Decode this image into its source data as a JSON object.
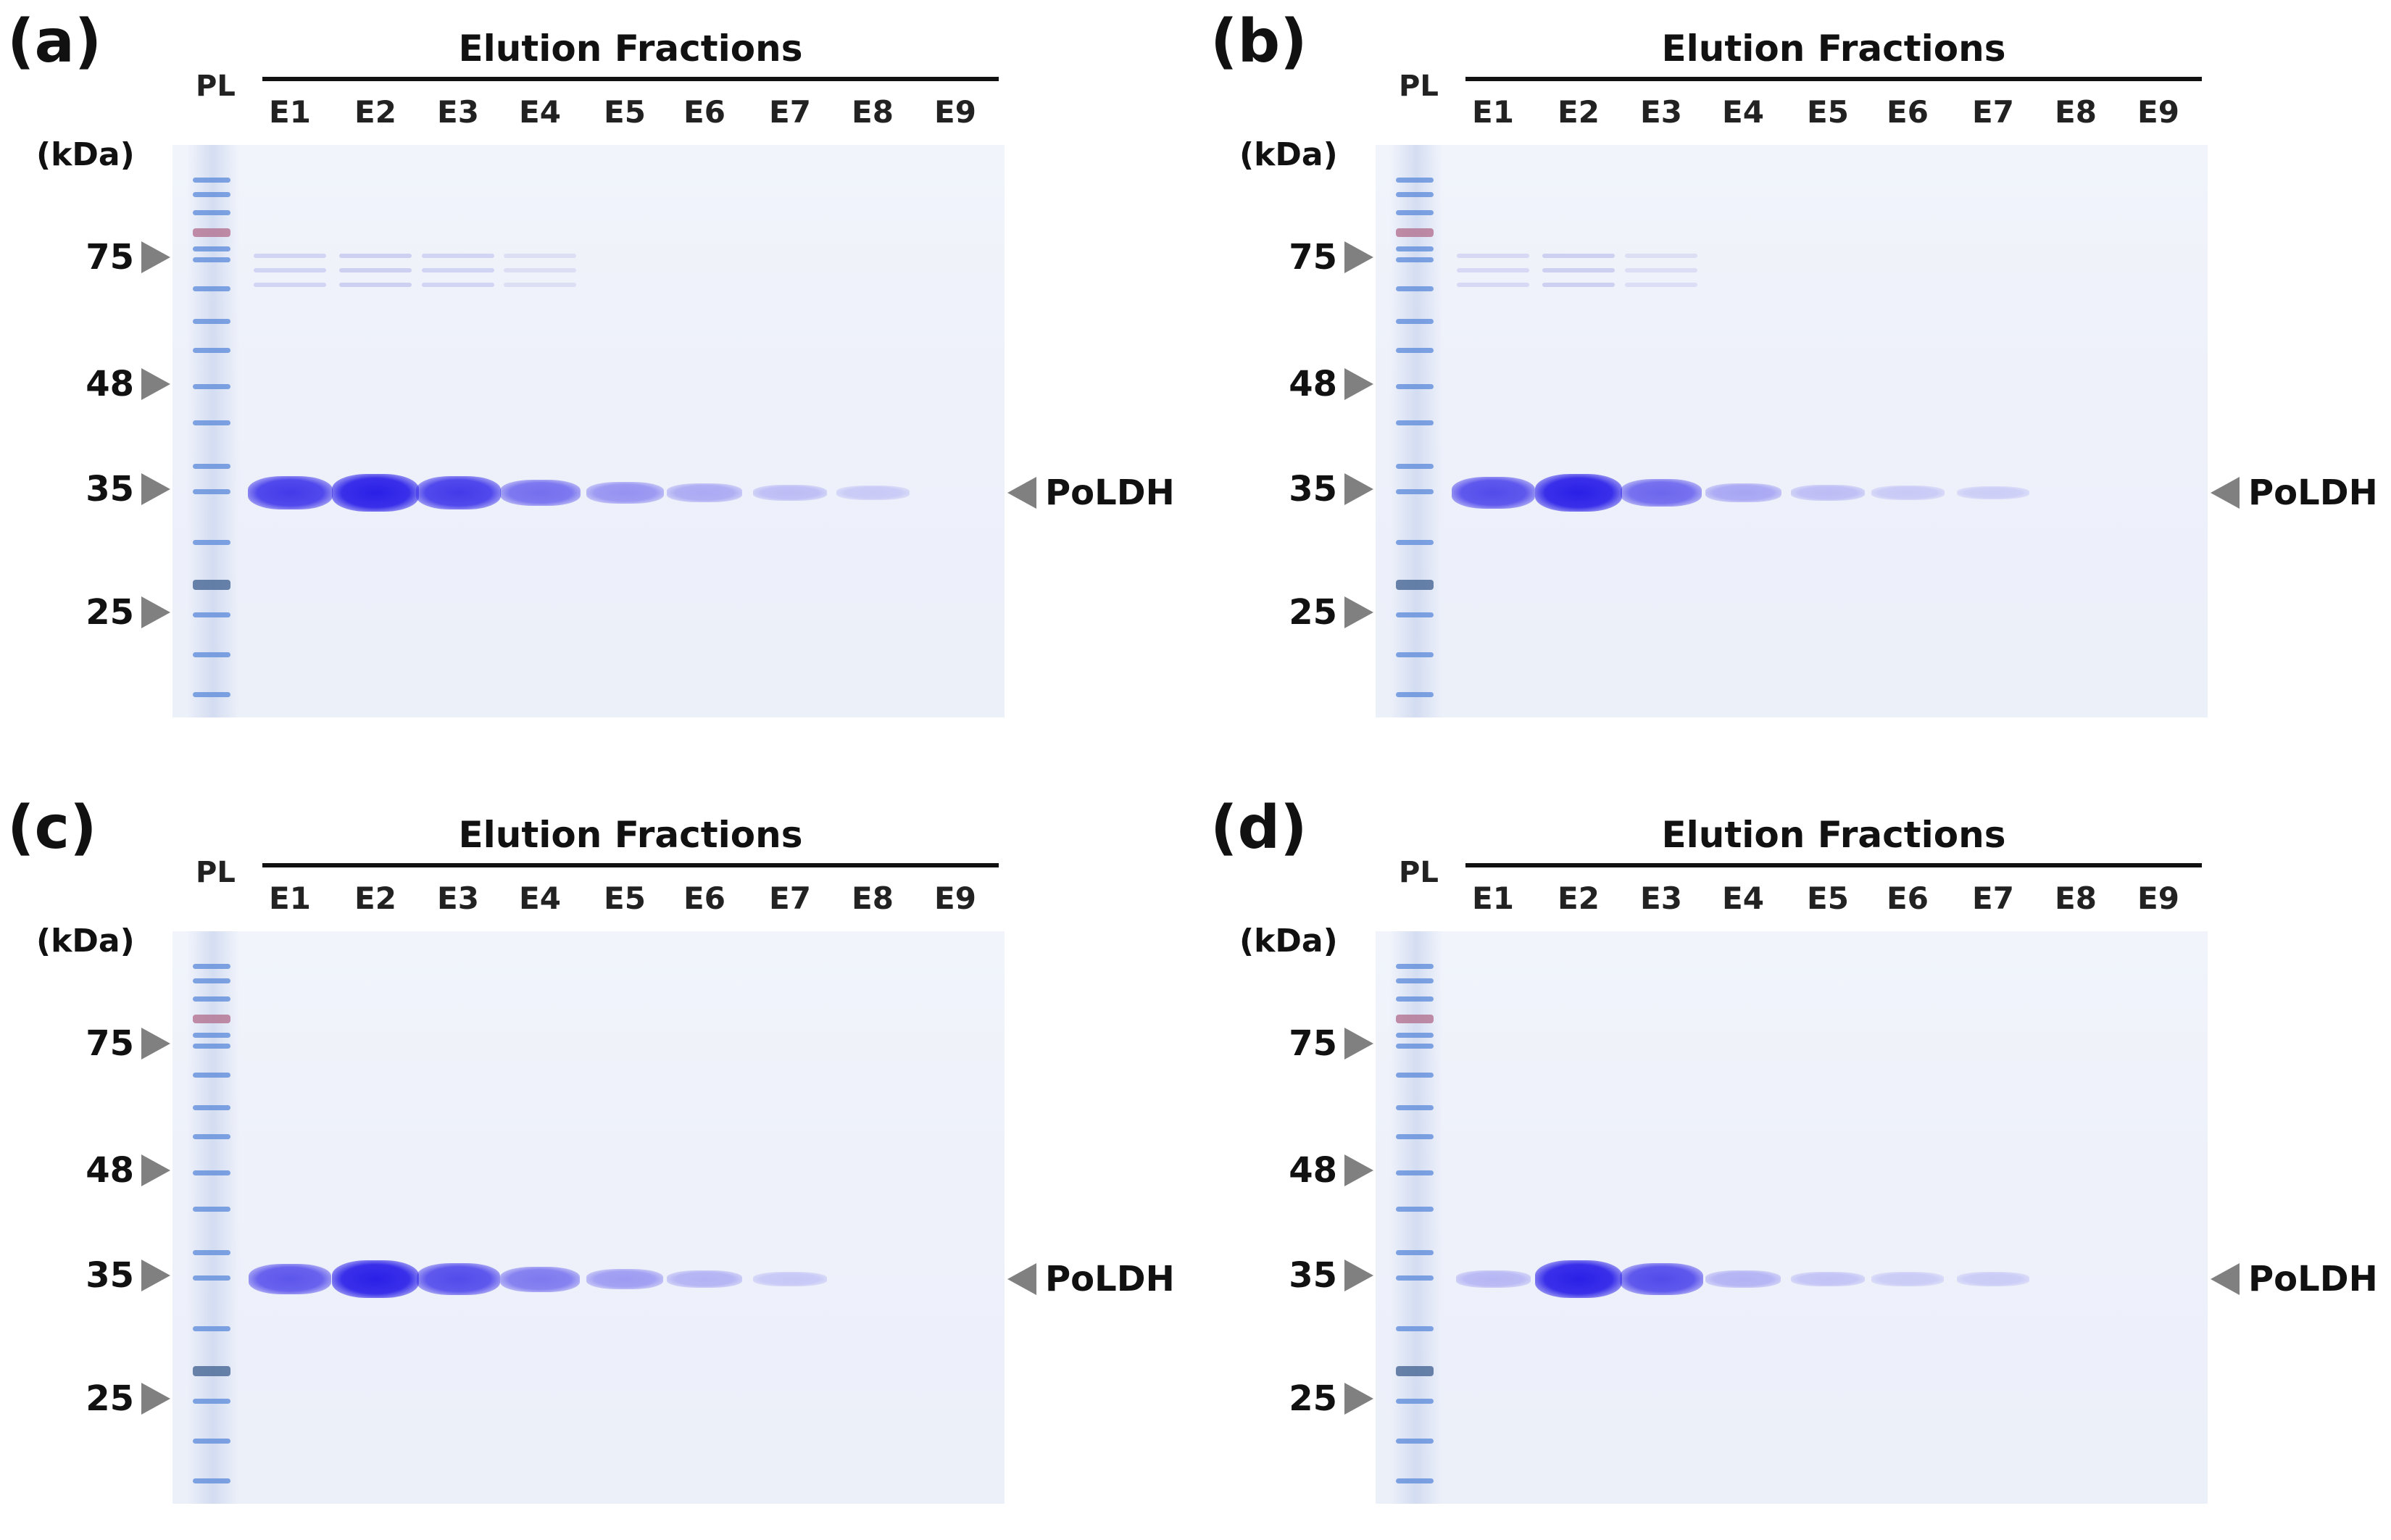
{
  "figure": {
    "header_title": "Elution Fractions",
    "ladder_label": "PL",
    "unit_label": "(kDa)",
    "target_label": "PoLDH",
    "lanes": [
      "E1",
      "E2",
      "E3",
      "E4",
      "E5",
      "E6",
      "E7",
      "E8",
      "E9"
    ],
    "markers": [
      "75",
      "48",
      "35",
      "25"
    ],
    "colors": {
      "protein_band": "#2a1fe6",
      "ladder_band": "#5a88d9",
      "arrow": "#808080",
      "gel_bg": "#eef1fa"
    },
    "panels": [
      {
        "label": "(a)",
        "band_intensity": [
          0.85,
          1.0,
          0.85,
          0.55,
          0.35,
          0.22,
          0.12,
          0.05,
          0.0
        ]
      },
      {
        "label": "(b)",
        "band_intensity": [
          0.75,
          1.0,
          0.6,
          0.25,
          0.12,
          0.05,
          0.02,
          0.0,
          0.0
        ]
      },
      {
        "label": "(c)",
        "band_intensity": [
          0.7,
          1.0,
          0.75,
          0.5,
          0.3,
          0.18,
          0.06,
          0.0,
          0.0
        ]
      },
      {
        "label": "(d)",
        "band_intensity": [
          0.15,
          1.0,
          0.75,
          0.18,
          0.08,
          0.04,
          0.03,
          0.0,
          0.0
        ]
      }
    ]
  }
}
